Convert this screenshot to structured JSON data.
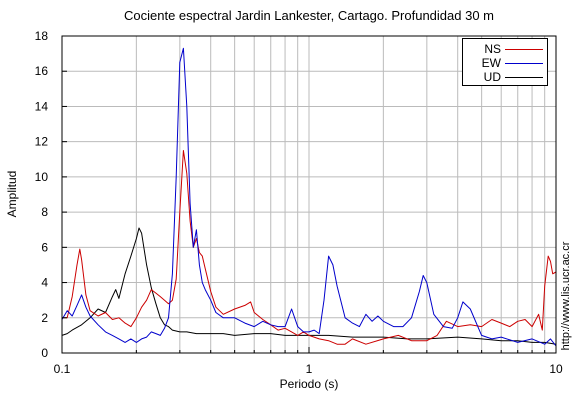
{
  "chart_data": {
    "type": "line",
    "title": "Cociente espectral Jardin Lankester, Cartago. Profundidad 30 m",
    "xlabel": "Periodo (s)",
    "ylabel": "Amplitud",
    "xscale": "log",
    "xlim": [
      0.1,
      10
    ],
    "ylim": [
      0,
      18
    ],
    "xticks": [
      "0.1",
      "1",
      "10"
    ],
    "yticks": [
      "0",
      "2",
      "4",
      "6",
      "8",
      "10",
      "12",
      "14",
      "16",
      "18"
    ],
    "grid": true,
    "legend_position": "top-right",
    "series": [
      {
        "name": "NS",
        "color": "#cc0000",
        "x": [
          0.1,
          0.105,
          0.11,
          0.115,
          0.118,
          0.12,
          0.125,
          0.13,
          0.14,
          0.15,
          0.16,
          0.17,
          0.18,
          0.19,
          0.2,
          0.21,
          0.22,
          0.23,
          0.24,
          0.25,
          0.26,
          0.27,
          0.28,
          0.29,
          0.3,
          0.31,
          0.32,
          0.33,
          0.34,
          0.35,
          0.36,
          0.37,
          0.38,
          0.4,
          0.42,
          0.45,
          0.5,
          0.55,
          0.58,
          0.6,
          0.65,
          0.7,
          0.75,
          0.8,
          0.85,
          0.9,
          0.95,
          1.0,
          1.1,
          1.2,
          1.3,
          1.4,
          1.5,
          1.7,
          2.0,
          2.3,
          2.6,
          3.0,
          3.3,
          3.6,
          4.0,
          4.5,
          5.0,
          5.5,
          6.0,
          6.5,
          7.0,
          7.5,
          8.0,
          8.5,
          8.8,
          9.0,
          9.3,
          9.5,
          9.7,
          10.0
        ],
        "values": [
          2.0,
          2.0,
          3.2,
          5.0,
          5.9,
          5.3,
          3.3,
          2.4,
          2.1,
          2.3,
          1.9,
          2.0,
          1.7,
          1.5,
          2.0,
          2.6,
          3.0,
          3.6,
          3.4,
          3.2,
          3.0,
          2.8,
          3.0,
          4.2,
          8.0,
          11.5,
          10.2,
          7.5,
          6.0,
          6.5,
          5.7,
          5.5,
          4.8,
          3.5,
          2.6,
          2.2,
          2.5,
          2.7,
          2.9,
          2.3,
          1.9,
          1.6,
          1.3,
          1.4,
          1.2,
          1.0,
          1.2,
          1.0,
          0.8,
          0.7,
          0.5,
          0.5,
          0.8,
          0.5,
          0.8,
          1.0,
          0.7,
          0.7,
          1.0,
          1.8,
          1.5,
          1.6,
          1.5,
          1.9,
          1.7,
          1.5,
          1.8,
          1.9,
          1.5,
          2.2,
          1.3,
          3.8,
          5.5,
          5.2,
          4.5,
          4.6
        ]
      },
      {
        "name": "EW",
        "color": "#0000cc",
        "x": [
          0.1,
          0.105,
          0.11,
          0.115,
          0.12,
          0.125,
          0.13,
          0.14,
          0.15,
          0.16,
          0.17,
          0.18,
          0.19,
          0.2,
          0.21,
          0.22,
          0.23,
          0.24,
          0.25,
          0.26,
          0.27,
          0.28,
          0.29,
          0.3,
          0.31,
          0.32,
          0.33,
          0.34,
          0.35,
          0.36,
          0.37,
          0.38,
          0.4,
          0.42,
          0.45,
          0.5,
          0.55,
          0.6,
          0.65,
          0.7,
          0.75,
          0.8,
          0.85,
          0.9,
          0.95,
          1.0,
          1.05,
          1.1,
          1.15,
          1.2,
          1.25,
          1.3,
          1.4,
          1.5,
          1.6,
          1.7,
          1.8,
          1.9,
          2.0,
          2.2,
          2.4,
          2.6,
          2.8,
          2.9,
          3.0,
          3.2,
          3.5,
          3.8,
          4.0,
          4.2,
          4.5,
          5.0,
          5.5,
          6.0,
          7.0,
          8.0,
          9.0,
          9.5,
          10.0
        ],
        "values": [
          1.9,
          2.4,
          2.1,
          2.7,
          3.3,
          2.6,
          2.1,
          1.6,
          1.2,
          1.0,
          0.8,
          0.6,
          0.8,
          0.6,
          0.8,
          0.9,
          1.2,
          1.1,
          1.0,
          1.4,
          2.0,
          4.5,
          10.0,
          16.5,
          17.3,
          14.0,
          8.5,
          6.0,
          7.0,
          5.0,
          4.0,
          3.6,
          3.0,
          2.3,
          2.0,
          2.0,
          1.7,
          1.5,
          1.8,
          1.6,
          1.5,
          1.5,
          2.5,
          1.5,
          1.2,
          1.2,
          1.3,
          1.1,
          3.0,
          5.5,
          5.0,
          3.8,
          2.0,
          1.7,
          1.5,
          2.2,
          1.8,
          2.1,
          1.8,
          1.5,
          1.5,
          2.0,
          3.5,
          4.4,
          4.0,
          2.2,
          1.5,
          1.4,
          2.0,
          2.9,
          2.5,
          1.0,
          0.8,
          0.9,
          0.6,
          0.8,
          0.5,
          0.8,
          0.4
        ]
      },
      {
        "name": "UD",
        "color": "#000000",
        "x": [
          0.1,
          0.105,
          0.11,
          0.12,
          0.13,
          0.14,
          0.15,
          0.16,
          0.165,
          0.17,
          0.18,
          0.19,
          0.2,
          0.205,
          0.21,
          0.22,
          0.23,
          0.24,
          0.25,
          0.26,
          0.27,
          0.28,
          0.3,
          0.32,
          0.35,
          0.4,
          0.45,
          0.5,
          0.6,
          0.7,
          0.8,
          0.9,
          1.0,
          1.2,
          1.5,
          2.0,
          2.5,
          3.0,
          4.0,
          5.0,
          6.0,
          7.0,
          8.0,
          9.0,
          10.0
        ],
        "values": [
          1.0,
          1.1,
          1.3,
          1.6,
          2.0,
          2.5,
          2.3,
          3.2,
          3.6,
          3.1,
          4.5,
          5.5,
          6.5,
          7.1,
          6.8,
          5.0,
          3.7,
          2.8,
          2.0,
          1.6,
          1.5,
          1.3,
          1.2,
          1.2,
          1.1,
          1.1,
          1.1,
          1.0,
          1.1,
          1.1,
          1.0,
          1.0,
          1.0,
          1.0,
          0.9,
          0.9,
          0.8,
          0.8,
          0.9,
          0.8,
          0.7,
          0.7,
          0.6,
          0.6,
          0.5
        ]
      }
    ]
  },
  "credit": "http://www.lis.ucr.ac.cr"
}
